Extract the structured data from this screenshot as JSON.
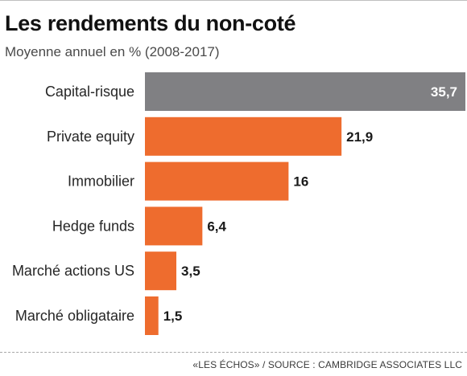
{
  "header": {
    "title": "Les rendements du non-coté",
    "subtitle": "Moyenne annuel en % (2008-2017)"
  },
  "footer": {
    "source": "«LES ÉCHOS» / SOURCE : CAMBRIDGE ASSOCIATES LLC"
  },
  "colors": {
    "highlight_bar": "#808083",
    "bar": "#ee6c2e"
  },
  "chart_data": {
    "type": "bar",
    "orientation": "horizontal",
    "title": "Les rendements du non-coté",
    "subtitle": "Moyenne annuel en % (2008-2017)",
    "categories": [
      "Capital-risque",
      "Private equity",
      "Immobilier",
      "Hedge funds",
      "Marché actions US",
      "Marché obligataire"
    ],
    "values": [
      35.7,
      21.9,
      16,
      6.4,
      3.5,
      1.5
    ],
    "value_labels": [
      "35,7",
      "21,9",
      "16",
      "6,4",
      "3,5",
      "1,5"
    ],
    "highlighted": [
      true,
      false,
      false,
      false,
      false,
      false
    ],
    "xlim": [
      0,
      35.7
    ],
    "grid": false,
    "legend": "none"
  }
}
